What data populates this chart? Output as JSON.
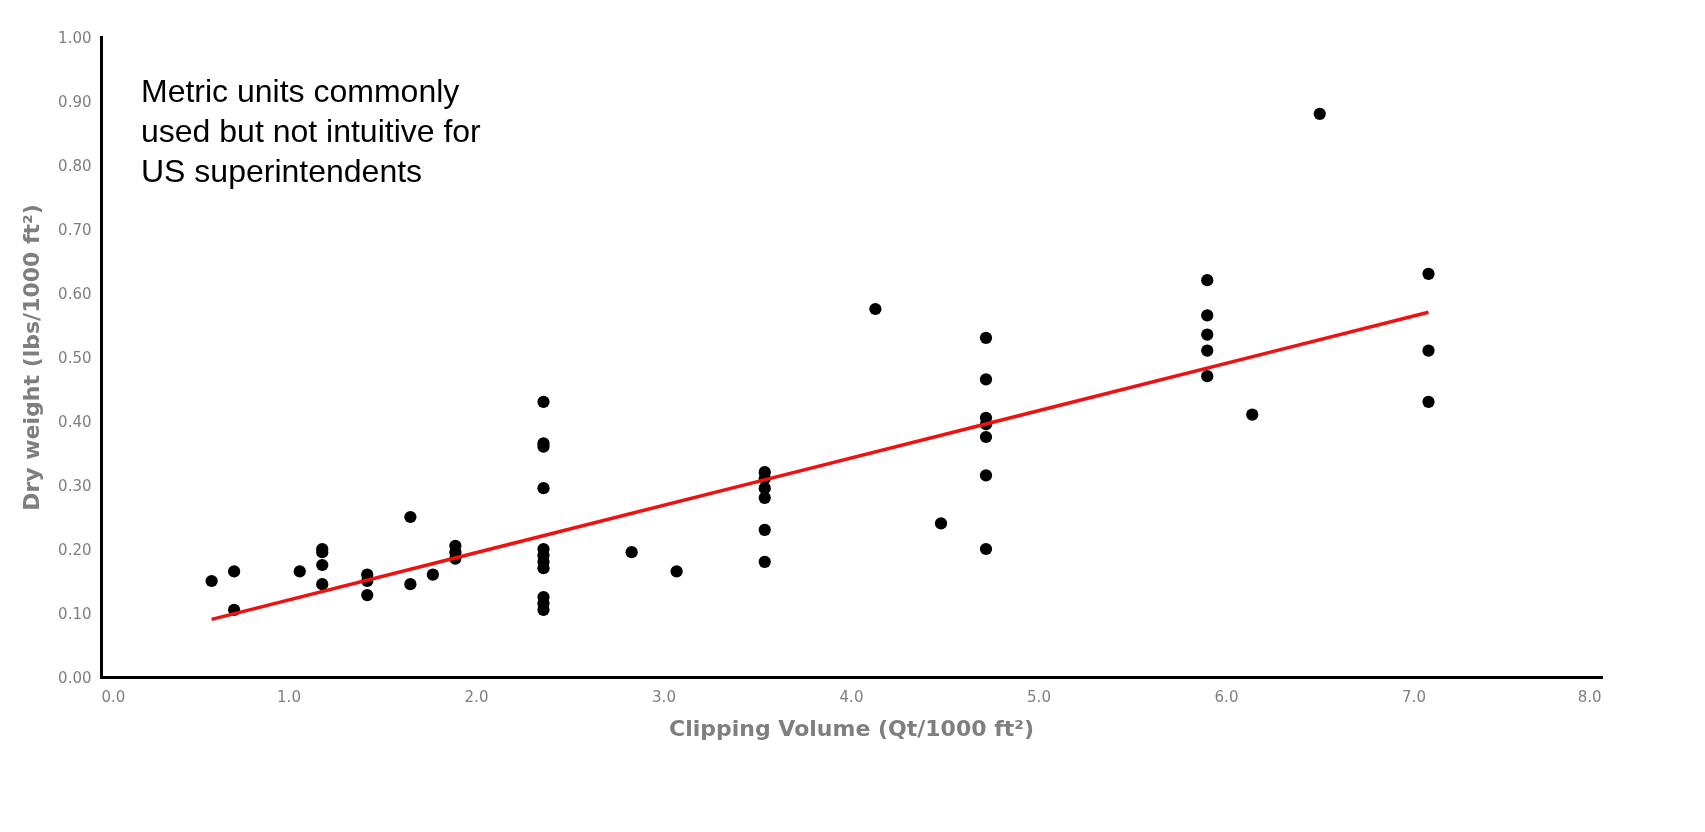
{
  "chart_data": {
    "type": "scatter",
    "xlabel": "Clipping Volume (Qt/1000 ft²)",
    "ylabel": "Dry weight (lbs/1000 ft²)",
    "annotations": [
      "Metric units commonly\nused but not intuitive for\nUS superintendents"
    ],
    "xlim": [
      0,
      8
    ],
    "ylim": [
      0,
      1
    ],
    "xticks": [
      {
        "value": 0,
        "label": "0.0"
      },
      {
        "value": 1,
        "label": "1.0"
      },
      {
        "value": 2,
        "label": "2.0"
      },
      {
        "value": 3,
        "label": "3.0"
      },
      {
        "value": 4,
        "label": "4.0"
      },
      {
        "value": 5,
        "label": "5.0"
      },
      {
        "value": 6,
        "label": "6.0"
      },
      {
        "value": 7,
        "label": "7.0"
      },
      {
        "value": 8,
        "label": "8.0"
      }
    ],
    "yticks": [
      {
        "value": 0,
        "label": "0.00"
      },
      {
        "value": 0.1,
        "label": "0.10"
      },
      {
        "value": 0.2,
        "label": "0.20"
      },
      {
        "value": 0.3,
        "label": "0.30"
      },
      {
        "value": 0.4,
        "label": "0.40"
      },
      {
        "value": 0.5,
        "label": "0.50"
      },
      {
        "value": 0.6,
        "label": "0.60"
      },
      {
        "value": 0.7,
        "label": "0.70"
      },
      {
        "value": 0.8,
        "label": "0.80"
      },
      {
        "value": 0.9,
        "label": "0.90"
      },
      {
        "value": 1,
        "label": "1.00"
      }
    ],
    "grid": false,
    "series": [
      {
        "marker": "circle",
        "color": "#000000",
        "x": [
          0.59,
          0.71,
          0.71,
          1.06,
          1.18,
          1.18,
          1.18,
          1.18,
          1.42,
          1.42,
          1.42,
          1.65,
          1.65,
          1.77,
          1.89,
          1.89,
          1.89,
          2.36,
          2.36,
          2.36,
          2.36,
          2.36,
          2.36,
          2.36,
          2.36,
          2.36,
          2.36,
          2.36,
          2.83,
          3.07,
          3.54,
          3.54,
          3.54,
          3.54,
          3.54,
          3.54,
          4.13,
          4.48,
          4.72,
          4.72,
          4.72,
          4.72,
          4.72,
          4.72,
          4.72,
          5.9,
          5.9,
          5.9,
          5.9,
          5.9,
          6.14,
          6.5,
          7.08,
          7.08,
          7.08
        ],
        "values": [
          0.15,
          0.165,
          0.105,
          0.165,
          0.2,
          0.195,
          0.175,
          0.145,
          0.16,
          0.15,
          0.128,
          0.25,
          0.145,
          0.16,
          0.205,
          0.195,
          0.185,
          0.43,
          0.365,
          0.36,
          0.295,
          0.2,
          0.19,
          0.18,
          0.17,
          0.125,
          0.115,
          0.105,
          0.195,
          0.165,
          0.32,
          0.31,
          0.295,
          0.28,
          0.23,
          0.18,
          0.575,
          0.24,
          0.53,
          0.465,
          0.405,
          0.395,
          0.375,
          0.315,
          0.2,
          0.62,
          0.565,
          0.535,
          0.51,
          0.47,
          0.41,
          0.88,
          0.63,
          0.51,
          0.43
        ]
      },
      {
        "type": "line",
        "marker": "none",
        "color": "#ee1111",
        "x": [
          0.59,
          7.08
        ],
        "values": [
          0.09,
          0.57
        ]
      }
    ]
  }
}
